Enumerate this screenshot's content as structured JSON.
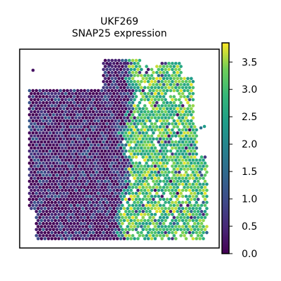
{
  "chart_data": {
    "type": "scatter",
    "title_line1": "UKF269",
    "title_line2": "SNAP25 expression",
    "xlabel": "",
    "ylabel": "",
    "grid": false,
    "x_ticks": [],
    "y_ticks": [],
    "colormap": "viridis",
    "colorbar": {
      "range": [
        0.0,
        3.85
      ],
      "ticks": [
        0.0,
        0.5,
        1.0,
        1.5,
        2.0,
        2.5,
        3.0,
        3.5
      ],
      "tick_labels": [
        "0.0",
        "0.5",
        "1.0",
        "1.5",
        "2.0",
        "2.5",
        "3.0",
        "3.5"
      ]
    },
    "spot_pattern": {
      "description": "hexagonal Visium spot grid",
      "low_expression_region": "left and central tissue, values near 0.0-0.6",
      "high_expression_region": "right tissue lobe, values near 2.5-3.5"
    }
  }
}
